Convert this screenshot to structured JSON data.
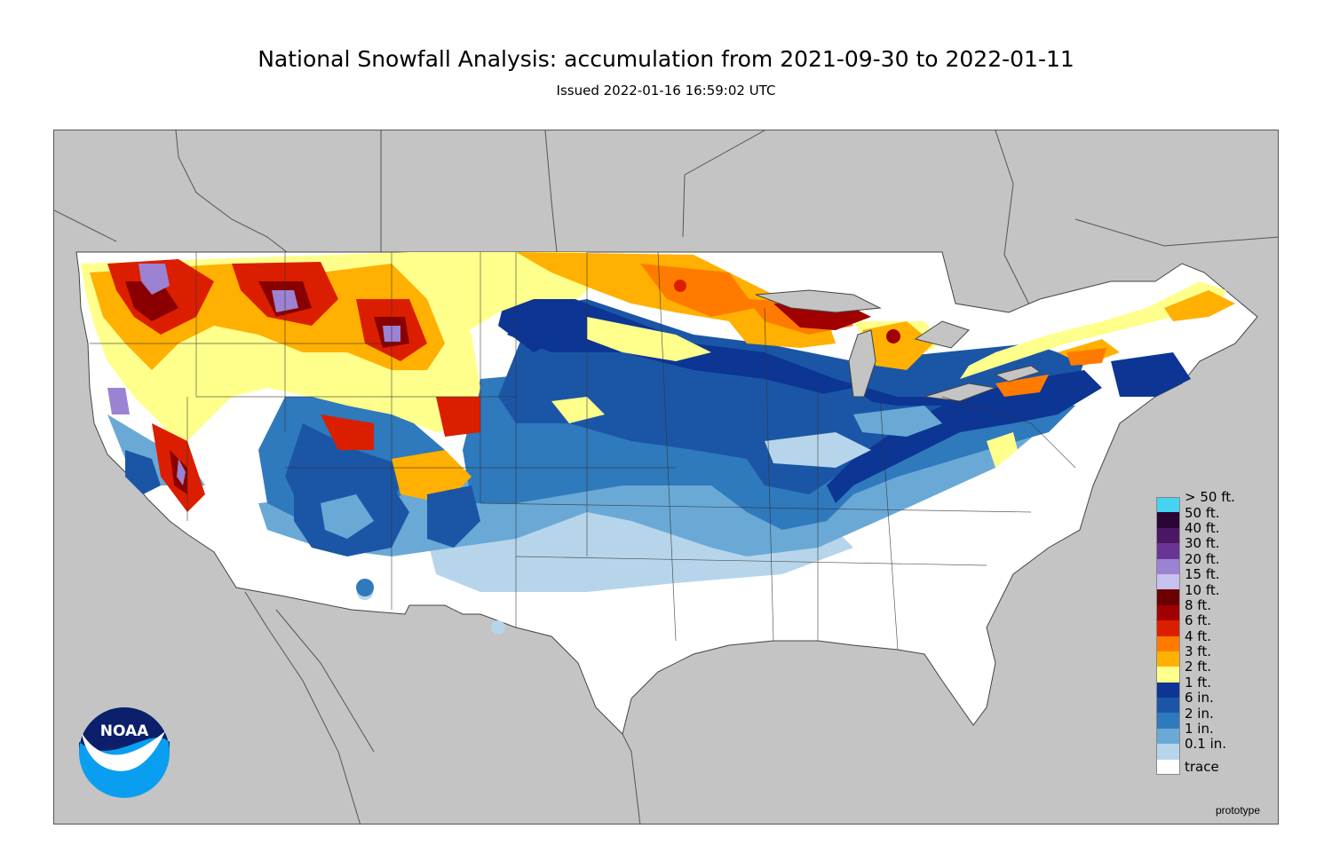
{
  "header": {
    "title": "National Snowfall Analysis: accumulation from 2021-09-30 to 2022-01-11",
    "subtitle": "Issued 2022-01-16 16:59:02 UTC"
  },
  "legend": {
    "items": [
      {
        "label": "> 50 ft.",
        "color": "#44d3f2"
      },
      {
        "label": "50 ft.",
        "color": "#2a0535"
      },
      {
        "label": "40 ft.",
        "color": "#4a1763"
      },
      {
        "label": "30 ft.",
        "color": "#6a3495"
      },
      {
        "label": "20 ft.",
        "color": "#9b82d2"
      },
      {
        "label": "15 ft.",
        "color": "#c8c0ee"
      },
      {
        "label": "10 ft.",
        "color": "#6a0000"
      },
      {
        "label": "8 ft.",
        "color": "#a00000"
      },
      {
        "label": "6 ft.",
        "color": "#dc1e00"
      },
      {
        "label": "4 ft.",
        "color": "#ff7b00"
      },
      {
        "label": "3 ft.",
        "color": "#ffb000"
      },
      {
        "label": "2 ft.",
        "color": "#ffff8c"
      },
      {
        "label": "1 ft.",
        "color": "#0c3594"
      },
      {
        "label": "6 in.",
        "color": "#1b56a6"
      },
      {
        "label": "2 in.",
        "color": "#2f79bd"
      },
      {
        "label": "1 in.",
        "color": "#6aa9d6"
      },
      {
        "label": "0.1 in.",
        "color": "#b7d5ea"
      },
      {
        "label": "trace",
        "color": "#ffffff"
      }
    ]
  },
  "map": {
    "background_color": "#c4c4c4",
    "land_color": "#ffffff"
  },
  "footer": {
    "prototype_label": "prototype",
    "logo_text": "NOAA"
  }
}
